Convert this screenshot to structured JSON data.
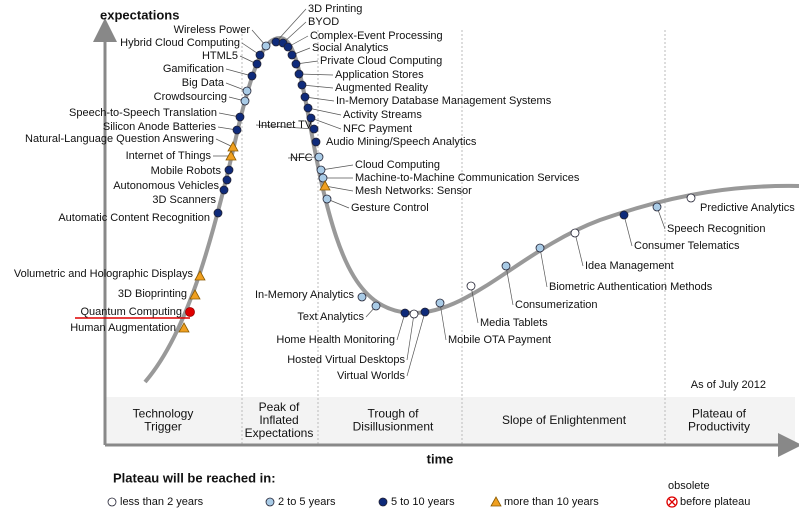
{
  "axes": {
    "y_label": "expectations",
    "x_label": "time"
  },
  "note": "As of July 2012",
  "phases": [
    {
      "lines": [
        "Technology",
        "Trigger"
      ]
    },
    {
      "lines": [
        "Peak of",
        "Inflated",
        "Expectations"
      ]
    },
    {
      "lines": [
        "Trough of",
        "Disillusionment"
      ]
    },
    {
      "lines": [
        "Slope of Enlightenment"
      ]
    },
    {
      "lines": [
        "Plateau of",
        "Productivity"
      ]
    }
  ],
  "nodes": [
    {
      "label": "Quantum Computing"
    },
    {
      "label": "Human Augmentation"
    },
    {
      "label": "3D Bioprinting"
    },
    {
      "label": "Volumetric and Holographic Displays"
    },
    {
      "label": "Automatic Content Recognition"
    },
    {
      "label": "3D Scanners"
    },
    {
      "label": "Autonomous Vehicles"
    },
    {
      "label": "Mobile Robots"
    },
    {
      "label": "Internet of Things"
    },
    {
      "label": "Natural-Language Question Answering"
    },
    {
      "label": "Silicon Anode Batteries"
    },
    {
      "label": "Speech-to-Speech Translation"
    },
    {
      "label": "Crowdsourcing"
    },
    {
      "label": "Big Data"
    },
    {
      "label": "Gamification"
    },
    {
      "label": "HTML5"
    },
    {
      "label": "Hybrid Cloud Computing"
    },
    {
      "label": "Wireless Power"
    },
    {
      "label": "3D Printing"
    },
    {
      "label": "BYOD"
    },
    {
      "label": "Complex-Event Processing"
    },
    {
      "label": "Social Analytics"
    },
    {
      "label": "Private Cloud Computing"
    },
    {
      "label": "Application Stores"
    },
    {
      "label": "Augmented Reality"
    },
    {
      "label": "In-Memory Database Management Systems"
    },
    {
      "label": "Activity Streams"
    },
    {
      "label": "NFC Payment"
    },
    {
      "label": "Internet TV"
    },
    {
      "label": "Audio Mining/Speech Analytics"
    },
    {
      "label": "NFC"
    },
    {
      "label": "Cloud Computing"
    },
    {
      "label": "Machine-to-Machine Communication Services"
    },
    {
      "label": "Mesh Networks: Sensor"
    },
    {
      "label": "Gesture Control"
    },
    {
      "label": "In-Memory Analytics"
    },
    {
      "label": "Text Analytics"
    },
    {
      "label": "Home Health Monitoring"
    },
    {
      "label": "Hosted Virtual Desktops"
    },
    {
      "label": "Virtual Worlds"
    },
    {
      "label": "Mobile OTA Payment"
    },
    {
      "label": "Media Tablets"
    },
    {
      "label": "Consumerization"
    },
    {
      "label": "Biometric Authentication Methods"
    },
    {
      "label": "Idea Management"
    },
    {
      "label": "Consumer Telematics"
    },
    {
      "label": "Speech Recognition"
    },
    {
      "label": "Predictive Analytics"
    }
  ],
  "legend": {
    "title": "Plateau will be reached in:",
    "items": [
      {
        "label": "less than 2 years"
      },
      {
        "label": "2 to 5 years"
      },
      {
        "label": "5 to 10 years"
      },
      {
        "label": "more than 10 years"
      },
      {
        "label": "before plateau"
      }
    ],
    "obsolete_label": "obsolete"
  }
}
